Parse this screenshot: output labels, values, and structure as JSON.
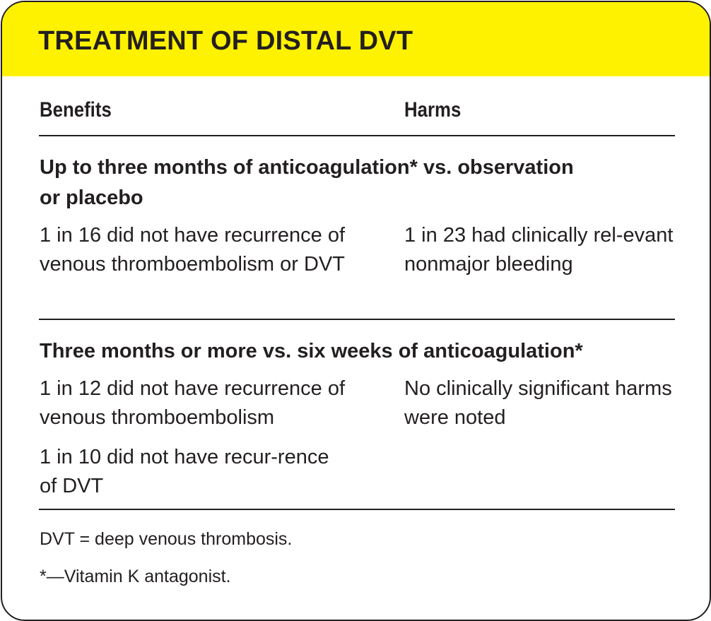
{
  "title": "TREATMENT OF DISTAL DVT",
  "columns": {
    "benefits": "Benefits",
    "harms": "Harms"
  },
  "sections": [
    {
      "heading_line1": "Up to three months of anticoagulation* vs. observation",
      "heading_line2": "or placebo",
      "benefits": [
        "1 in 16 did not have recurrence of venous thromboembolism or DVT"
      ],
      "harms": [
        "1 in 23 had clinically rel-evant nonmajor bleeding"
      ]
    },
    {
      "heading_line1": "Three months or more vs. six weeks of anticoagulation*",
      "benefits": [
        "1 in 12 did not have recurrence of venous thromboembolism",
        "1 in 10 did not have recur-rence of DVT"
      ],
      "harms": [
        "No clinically significant harms were noted"
      ]
    }
  ],
  "footnotes": [
    "DVT = deep venous thrombosis.",
    "*—Vitamin K antagonist."
  ],
  "colors": {
    "banner": "#fff200",
    "text": "#231f20"
  }
}
